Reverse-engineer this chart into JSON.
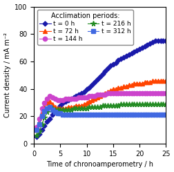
{
  "xlabel": "Time of chronoamperometry / h",
  "ylabel": "Current density / mA m⁻²",
  "xlim": [
    0,
    25
  ],
  "ylim": [
    0,
    100
  ],
  "xticks": [
    0,
    5,
    10,
    15,
    20,
    25
  ],
  "yticks": [
    0,
    20,
    40,
    60,
    80,
    100
  ],
  "legend_title": "Acclimation periods:",
  "figsize": [
    2.52,
    2.49
  ],
  "dpi": 100,
  "series": [
    {
      "label": "t = 0 h",
      "color": "#1a1aaa",
      "marker": "D",
      "markersize": 3.5,
      "x": [
        0.5,
        1,
        1.5,
        2,
        2.5,
        3,
        3.5,
        4,
        4.5,
        5,
        5.5,
        6,
        6.5,
        7,
        7.5,
        8,
        8.5,
        9,
        9.5,
        10,
        10.5,
        11,
        11.5,
        12,
        12.5,
        13,
        13.5,
        14,
        14.5,
        15,
        15.5,
        16,
        16.5,
        17,
        17.5,
        18,
        18.5,
        19,
        19.5,
        20,
        20.5,
        21,
        21.5,
        22,
        22.5,
        23,
        23.5,
        24,
        24.5,
        25
      ],
      "y": [
        5,
        7,
        10,
        13,
        16,
        18,
        21,
        24,
        26,
        28,
        30,
        31,
        32,
        33,
        34,
        35,
        36,
        37,
        38,
        40,
        41,
        43,
        45,
        47,
        49,
        51,
        53,
        55,
        57,
        58,
        59,
        61,
        62,
        63,
        64,
        65,
        66,
        67,
        68,
        69,
        70,
        71,
        72,
        73,
        74,
        75,
        75,
        75,
        75,
        75
      ]
    },
    {
      "label": "t = 72 h",
      "color": "#FF4400",
      "marker": "^",
      "markersize": 4.5,
      "x": [
        0.5,
        1,
        1.5,
        2,
        2.5,
        3,
        3.5,
        4,
        4.5,
        5,
        5.5,
        6,
        6.5,
        7,
        7.5,
        8,
        8.5,
        9,
        9.5,
        10,
        10.5,
        11,
        11.5,
        12,
        12.5,
        13,
        13.5,
        14,
        14.5,
        15,
        15.5,
        16,
        16.5,
        17,
        17.5,
        18,
        18.5,
        19,
        19.5,
        20,
        20.5,
        21,
        21.5,
        22,
        22.5,
        23,
        23.5,
        24,
        24.5,
        25
      ],
      "y": [
        10,
        15,
        22,
        27,
        30,
        31,
        29,
        27,
        26,
        26,
        26,
        26,
        27,
        27,
        27,
        28,
        28,
        28,
        29,
        30,
        31,
        32,
        33,
        34,
        35,
        36,
        37,
        38,
        39,
        40,
        40,
        41,
        41,
        42,
        42,
        43,
        43,
        44,
        44,
        44,
        44,
        45,
        45,
        45,
        46,
        46,
        46,
        46,
        46,
        46
      ]
    },
    {
      "label": "t = 144 h",
      "color": "#CC44CC",
      "marker": "o",
      "markersize": 4.5,
      "x": [
        0.5,
        1,
        1.5,
        2,
        2.5,
        3,
        3.5,
        4,
        4.5,
        5,
        5.5,
        6,
        6.5,
        7,
        7.5,
        8,
        8.5,
        9,
        9.5,
        10,
        10.5,
        11,
        11.5,
        12,
        12.5,
        13,
        13.5,
        14,
        14.5,
        15,
        15.5,
        16,
        16.5,
        17,
        17.5,
        18,
        18.5,
        19,
        19.5,
        20,
        20.5,
        21,
        21.5,
        22,
        22.5,
        23,
        23.5,
        24,
        24.5,
        25
      ],
      "y": [
        12,
        18,
        26,
        30,
        33,
        35,
        34,
        33,
        32,
        32,
        32,
        33,
        33,
        33,
        33,
        33,
        34,
        34,
        34,
        34,
        35,
        35,
        35,
        36,
        36,
        36,
        36,
        37,
        37,
        37,
        37,
        37,
        37,
        37,
        37,
        37,
        37,
        37,
        37,
        37,
        37,
        37,
        37,
        37,
        37,
        37,
        37,
        37,
        37,
        37
      ]
    },
    {
      "label": "t = 216 h",
      "color": "#228B22",
      "marker": "*",
      "markersize": 5.5,
      "x": [
        0.5,
        1,
        1.5,
        2,
        2.5,
        3,
        3.5,
        4,
        4.5,
        5,
        5.5,
        6,
        6.5,
        7,
        7.5,
        8,
        8.5,
        9,
        9.5,
        10,
        10.5,
        11,
        11.5,
        12,
        12.5,
        13,
        13.5,
        14,
        14.5,
        15,
        15.5,
        16,
        16.5,
        17,
        17.5,
        18,
        18.5,
        19,
        19.5,
        20,
        20.5,
        21,
        21.5,
        22,
        22.5,
        23,
        23.5,
        24,
        24.5,
        25
      ],
      "y": [
        6,
        9,
        14,
        19,
        23,
        27,
        26,
        25,
        25,
        25,
        25,
        25,
        25,
        25,
        26,
        26,
        26,
        26,
        26,
        26,
        27,
        27,
        27,
        27,
        27,
        28,
        28,
        28,
        28,
        28,
        28,
        28,
        29,
        29,
        29,
        29,
        29,
        29,
        29,
        29,
        29,
        29,
        29,
        29,
        29,
        29,
        29,
        29,
        29,
        29
      ]
    },
    {
      "label": "t = 312 h",
      "color": "#4169E1",
      "marker": "s",
      "markersize": 4.0,
      "x": [
        0.5,
        1,
        1.5,
        2,
        2.5,
        3,
        3.5,
        4,
        4.5,
        5,
        5.5,
        6,
        6.5,
        7,
        7.5,
        8,
        8.5,
        9,
        9.5,
        10,
        10.5,
        11,
        11.5,
        12,
        12.5,
        13,
        13.5,
        14,
        14.5,
        15,
        15.5,
        16,
        16.5,
        17,
        17.5,
        18,
        18.5,
        19,
        19.5,
        20,
        20.5,
        21,
        21.5,
        22,
        22.5,
        23,
        23.5,
        24,
        24.5,
        25
      ],
      "y": [
        10,
        14,
        20,
        24,
        26,
        27,
        25,
        23,
        22,
        22,
        21,
        21,
        21,
        21,
        21,
        21,
        21,
        21,
        21,
        21,
        21,
        21,
        21,
        21,
        21,
        21,
        21,
        21,
        21,
        21,
        21,
        21,
        21,
        21,
        21,
        21,
        21,
        21,
        21,
        21,
        21,
        21,
        21,
        21,
        21,
        21,
        21,
        21,
        21,
        21
      ]
    }
  ]
}
